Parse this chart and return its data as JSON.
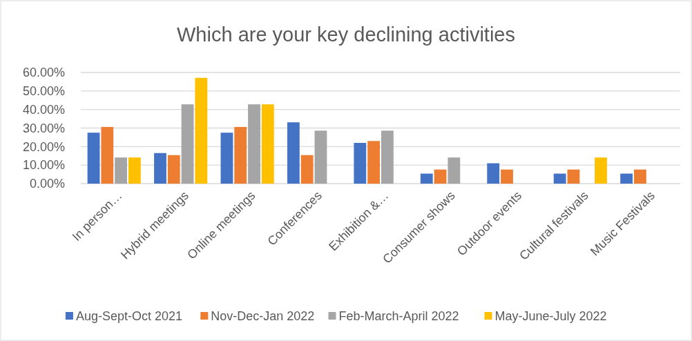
{
  "chart_data": {
    "type": "bar",
    "title": "Which are your key declining activities",
    "categories": [
      "In person…",
      "Hybrid meetings",
      "Online meetings",
      "Conferences",
      "Exhibition &…",
      "Consumer shows",
      "Outdoor events",
      "Cultural festivals",
      "Music Festivals"
    ],
    "series": [
      {
        "name": "Aug-Sept-Oct 2021",
        "color": "#4472c4",
        "values": [
          27.5,
          16.5,
          27.5,
          33.1,
          22,
          5.4,
          11,
          5.4,
          5.4
        ]
      },
      {
        "name": "Nov-Dec-Jan 2022",
        "color": "#ed7d31",
        "values": [
          30.6,
          15.4,
          30.6,
          15.4,
          23,
          7.6,
          7.6,
          7.6,
          7.6
        ]
      },
      {
        "name": "Feb-March-April 2022",
        "color": "#a5a5a5",
        "values": [
          14.1,
          42.8,
          42.8,
          28.6,
          28.6,
          14.1,
          null,
          null,
          null
        ]
      },
      {
        "name": "May-June-July 2022",
        "color": "#ffc000",
        "values": [
          14.1,
          57.1,
          42.8,
          null,
          null,
          null,
          null,
          14.1,
          null
        ]
      }
    ],
    "ylim": [
      0,
      60
    ],
    "yticks": [
      {
        "value": 0,
        "label": "0.00%"
      },
      {
        "value": 10,
        "label": "10.00%"
      },
      {
        "value": 20,
        "label": "20.00%"
      },
      {
        "value": 30,
        "label": "30.00%"
      },
      {
        "value": 40,
        "label": "40.00%"
      },
      {
        "value": 50,
        "label": "50.00%"
      },
      {
        "value": 60,
        "label": "60.00%"
      }
    ],
    "grid": "y",
    "legend": "bottom"
  }
}
